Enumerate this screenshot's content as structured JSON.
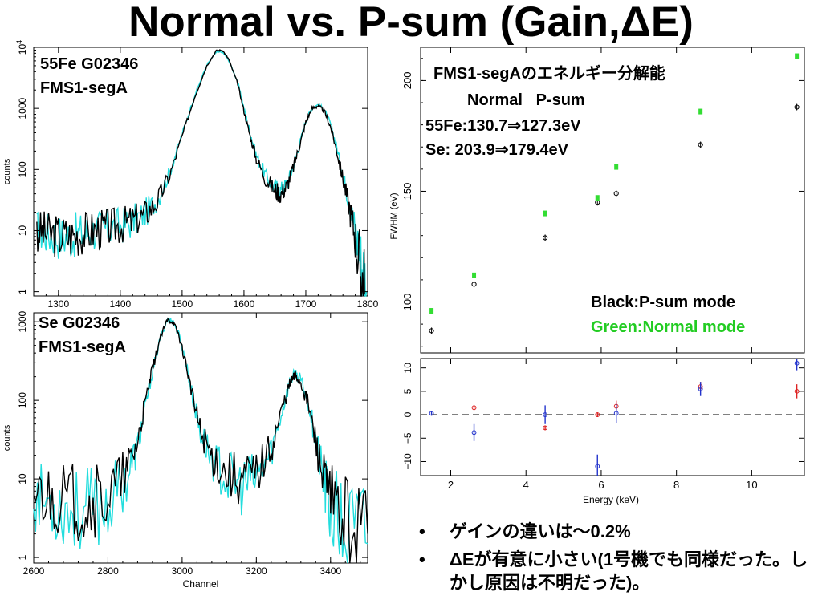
{
  "slide": {
    "title": "Normal vs. P-sum (Gain,ΔE)",
    "bullets": [
      "ゲインの違いは〜0.2%",
      "ΔEが有意に小さい(1号機でも同様だった。しかし原因は不明だった)。"
    ]
  },
  "colors": {
    "psum": "#000000",
    "normal": "#22dddd",
    "fwhm_psum": "#000000",
    "fwhm_normal": "#33dd33",
    "resid_red": "#dd2222",
    "resid_blue": "#2233cc",
    "legend_green": "#22cc22"
  },
  "chart_data": [
    {
      "type": "line",
      "log_y": true,
      "labels": [
        "55Fe G02346",
        "FMS1-segA"
      ],
      "xlabel": "",
      "ylabel": "counts",
      "xlim": [
        1260,
        1800
      ],
      "ylim": [
        0.85,
        10000
      ],
      "x_ticks": [
        "1300",
        "1400",
        "1500",
        "1600",
        "1700",
        "1800"
      ],
      "y_ticks": [
        {
          "mantissa": "1",
          "exp": ""
        },
        {
          "mantissa": "10",
          "exp": ""
        },
        {
          "mantissa": "100",
          "exp": ""
        },
        {
          "mantissa": "1000",
          "exp": ""
        },
        {
          "mantissa": "10",
          "exp": "4"
        }
      ],
      "series": [
        {
          "values": [
            [
              1265,
              10
            ],
            [
              1280,
              9
            ],
            [
              1300,
              8
            ],
            [
              1320,
              8
            ],
            [
              1340,
              9
            ],
            [
              1360,
              10
            ],
            [
              1380,
              11
            ],
            [
              1400,
              12
            ],
            [
              1420,
              14
            ],
            [
              1440,
              18
            ],
            [
              1460,
              30
            ],
            [
              1480,
              80
            ],
            [
              1500,
              350
            ],
            [
              1520,
              1500
            ],
            [
              1540,
              5000
            ],
            [
              1555,
              8800
            ],
            [
              1565,
              9000
            ],
            [
              1575,
              6500
            ],
            [
              1590,
              2500
            ],
            [
              1600,
              900
            ],
            [
              1610,
              350
            ],
            [
              1620,
              150
            ],
            [
              1635,
              70
            ],
            [
              1650,
              45
            ],
            [
              1660,
              40
            ],
            [
              1670,
              55
            ],
            [
              1680,
              110
            ],
            [
              1690,
              250
            ],
            [
              1700,
              600
            ],
            [
              1710,
              1000
            ],
            [
              1720,
              1100
            ],
            [
              1730,
              900
            ],
            [
              1740,
              500
            ],
            [
              1750,
              200
            ],
            [
              1760,
              70
            ],
            [
              1770,
              25
            ],
            [
              1780,
              8
            ],
            [
              1788,
              2
            ],
            [
              1795,
              0.9
            ]
          ]
        },
        {
          "values": [
            [
              1265,
              10
            ],
            [
              1280,
              9
            ],
            [
              1300,
              8
            ],
            [
              1320,
              8
            ],
            [
              1340,
              9
            ],
            [
              1360,
              10
            ],
            [
              1380,
              11
            ],
            [
              1400,
              12
            ],
            [
              1420,
              14
            ],
            [
              1440,
              19
            ],
            [
              1460,
              32
            ],
            [
              1480,
              90
            ],
            [
              1500,
              380
            ],
            [
              1520,
              1600
            ],
            [
              1540,
              5200
            ],
            [
              1555,
              8300
            ],
            [
              1565,
              8400
            ],
            [
              1575,
              6200
            ],
            [
              1590,
              2700
            ],
            [
              1600,
              1000
            ],
            [
              1610,
              400
            ],
            [
              1620,
              170
            ],
            [
              1635,
              80
            ],
            [
              1650,
              50
            ],
            [
              1660,
              45
            ],
            [
              1670,
              58
            ],
            [
              1680,
              115
            ],
            [
              1690,
              260
            ],
            [
              1700,
              620
            ],
            [
              1710,
              1020
            ],
            [
              1720,
              1150
            ],
            [
              1730,
              950
            ],
            [
              1740,
              560
            ],
            [
              1750,
              230
            ],
            [
              1760,
              80
            ],
            [
              1770,
              30
            ],
            [
              1780,
              10
            ],
            [
              1790,
              3
            ],
            [
              1798,
              1
            ]
          ]
        }
      ]
    },
    {
      "type": "line",
      "log_y": true,
      "labels": [
        "Se G02346",
        "FMS1-segA"
      ],
      "xlabel": "Channel",
      "ylabel": "counts",
      "xlim": [
        2600,
        3500
      ],
      "ylim": [
        0.85,
        1300
      ],
      "x_ticks": [
        "2600",
        "2800",
        "3000",
        "3200",
        "3400"
      ],
      "y_ticks": [
        {
          "mantissa": "1",
          "exp": ""
        },
        {
          "mantissa": "10",
          "exp": ""
        },
        {
          "mantissa": "100",
          "exp": ""
        },
        {
          "mantissa": "1000",
          "exp": ""
        }
      ],
      "series": [
        {
          "values": [
            [
              2600,
              7
            ],
            [
              2650,
              6
            ],
            [
              2700,
              5
            ],
            [
              2750,
              5
            ],
            [
              2800,
              6
            ],
            [
              2850,
              12
            ],
            [
              2880,
              30
            ],
            [
              2900,
              90
            ],
            [
              2920,
              250
            ],
            [
              2940,
              600
            ],
            [
              2960,
              1050
            ],
            [
              2975,
              1000
            ],
            [
              2990,
              700
            ],
            [
              3010,
              300
            ],
            [
              3030,
              100
            ],
            [
              3050,
              40
            ],
            [
              3080,
              20
            ],
            [
              3120,
              12
            ],
            [
              3160,
              10
            ],
            [
              3200,
              12
            ],
            [
              3240,
              25
            ],
            [
              3270,
              80
            ],
            [
              3290,
              160
            ],
            [
              3305,
              210
            ],
            [
              3320,
              170
            ],
            [
              3340,
              90
            ],
            [
              3360,
              30
            ],
            [
              3380,
              10
            ],
            [
              3400,
              5
            ],
            [
              3440,
              3
            ],
            [
              3500,
              2
            ]
          ]
        },
        {
          "values": [
            [
              2600,
              6
            ],
            [
              2650,
              5
            ],
            [
              2700,
              4
            ],
            [
              2750,
              4
            ],
            [
              2800,
              5
            ],
            [
              2850,
              10
            ],
            [
              2880,
              25
            ],
            [
              2900,
              80
            ],
            [
              2920,
              230
            ],
            [
              2940,
              580
            ],
            [
              2960,
              1080
            ],
            [
              2975,
              1030
            ],
            [
              2990,
              720
            ],
            [
              3010,
              310
            ],
            [
              3030,
              100
            ],
            [
              3050,
              38
            ],
            [
              3080,
              18
            ],
            [
              3120,
              10
            ],
            [
              3160,
              8
            ],
            [
              3200,
              10
            ],
            [
              3240,
              22
            ],
            [
              3270,
              75
            ],
            [
              3290,
              170
            ],
            [
              3305,
              220
            ],
            [
              3320,
              180
            ],
            [
              3340,
              95
            ],
            [
              3360,
              32
            ],
            [
              3380,
              10
            ],
            [
              3400,
              4
            ],
            [
              3440,
              2
            ],
            [
              3500,
              1.5
            ]
          ]
        }
      ]
    },
    {
      "type": "scatter",
      "title": "FMS1-segAのエネルギー分解能",
      "xlabel": "Energy (keV)",
      "ylabel": "FWHM (eV)",
      "xlim": [
        1.2,
        11.4
      ],
      "ylim": [
        77,
        215
      ],
      "x_ticks": [
        2,
        4,
        6,
        8,
        10
      ],
      "y_ticks": [
        100,
        150,
        200
      ],
      "annotations": [
        "Normal   P-sum",
        "55Fe:130.7⇒127.3eV",
        "Se: 203.9⇒179.4eV"
      ],
      "legend": [
        "Black:P-sum mode",
        "Green:Normal mode"
      ],
      "series": [
        {
          "name": "P-sum mode",
          "x": [
            1.49,
            2.62,
            4.51,
            5.9,
            6.4,
            8.64,
            11.2
          ],
          "y": [
            87,
            108,
            129,
            145,
            149,
            171,
            188
          ]
        },
        {
          "name": "Normal mode",
          "x": [
            1.49,
            2.62,
            4.51,
            5.9,
            6.4,
            8.64,
            11.2
          ],
          "y": [
            96,
            112,
            140,
            147,
            161,
            186,
            211
          ]
        }
      ]
    },
    {
      "type": "scatter",
      "xlabel": "Energy (keV)",
      "ylabel": "",
      "xlim": [
        1.2,
        11.4
      ],
      "ylim": [
        -13,
        12
      ],
      "x_ticks": [
        2,
        4,
        6,
        8,
        10
      ],
      "y_ticks": [
        -10,
        -5,
        0,
        5,
        10
      ],
      "series": [
        {
          "x": [
            2.62,
            4.51,
            5.9,
            6.4,
            8.64,
            11.2
          ],
          "y": [
            1.5,
            -2.8,
            0,
            1.8,
            6.0,
            5.0
          ],
          "err": [
            0.5,
            0.5,
            0.5,
            1.2,
            1.0,
            1.5
          ]
        },
        {
          "x": [
            1.49,
            2.62,
            4.51,
            5.9,
            6.4,
            8.64,
            11.2
          ],
          "y": [
            0.3,
            -3.8,
            0,
            -11,
            0.3,
            5.5,
            11
          ],
          "err": [
            0.5,
            1.8,
            2.0,
            2.5,
            2.0,
            1.5,
            1.5
          ]
        }
      ]
    }
  ]
}
